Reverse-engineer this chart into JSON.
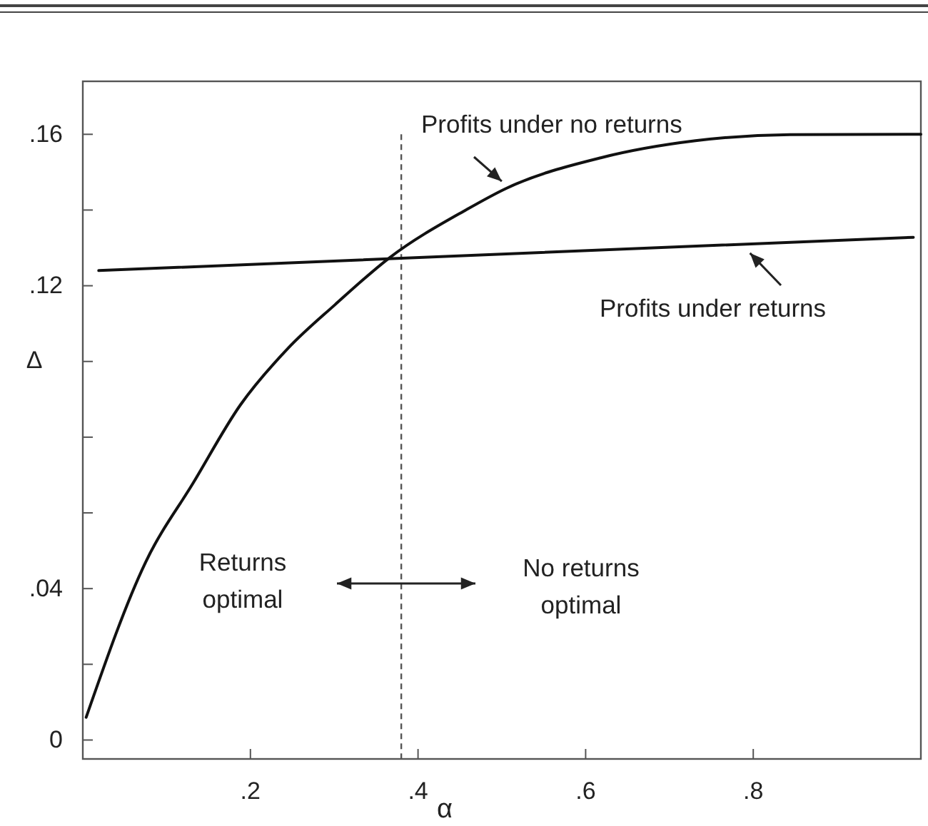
{
  "chart_data": {
    "type": "line",
    "xlabel": "α",
    "ylabel": "Δ",
    "xlim": [
      0,
      1
    ],
    "ylim": [
      -0.005,
      0.174
    ],
    "xticks": [
      {
        "value": 0.2,
        "label": ".2"
      },
      {
        "value": 0.4,
        "label": ".4"
      },
      {
        "value": 0.6,
        "label": ".6"
      },
      {
        "value": 0.8,
        "label": ".8"
      }
    ],
    "yticks": [
      0,
      {
        "value": 0.02,
        "label": null
      },
      {
        "value": 0.04,
        "label": ".04"
      },
      {
        "value": 0.06,
        "label": null
      },
      {
        "value": 0.08,
        "label": null
      },
      {
        "value": 0.1,
        "label": null
      },
      {
        "value": 0.12,
        "label": ".12"
      },
      {
        "value": 0.14,
        "label": null
      },
      {
        "value": 0.16,
        "label": ".16"
      }
    ],
    "grid": false,
    "marker": "none",
    "line_style": "solid",
    "series": [
      {
        "color": "#111111",
        "x": [
          0.004,
          0.075,
          0.132,
          0.188,
          0.245,
          0.301,
          0.366,
          0.457,
          0.505,
          0.618,
          0.731,
          0.844,
          1.0
        ],
        "values": [
          0.006,
          0.047,
          0.068,
          0.0885,
          0.1035,
          0.115,
          0.1274,
          0.14,
          0.1457,
          0.1538,
          0.1583,
          0.1599,
          0.16
        ]
      },
      {
        "color": "#111111",
        "x": [
          0.019,
          0.991
        ],
        "values": [
          0.124,
          0.1328
        ]
      }
    ],
    "ref_lines": [
      {
        "axis": "x",
        "value": 0.38,
        "line_style": "dashed",
        "color": "#555555"
      }
    ],
    "annotations": [
      {
        "text": "Profits under no returns",
        "x": 0.505,
        "y": 0.1457
      },
      {
        "text": "Profits under returns",
        "x": 0.791,
        "y": 0.1305
      },
      "Returns\noptimal",
      "No returns\noptimal"
    ]
  }
}
